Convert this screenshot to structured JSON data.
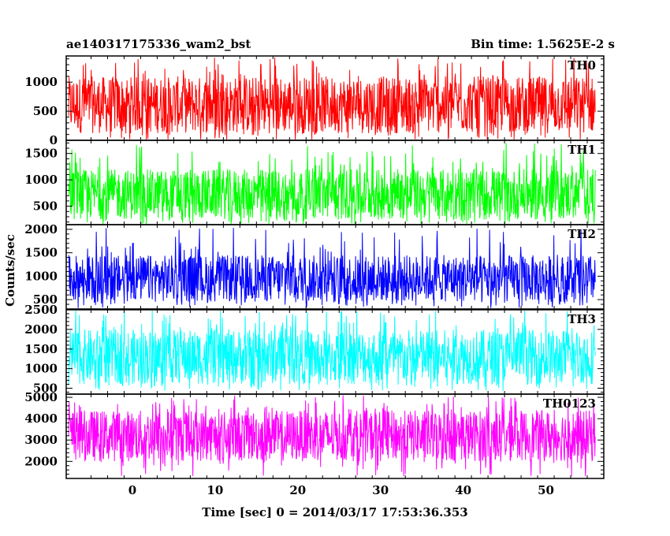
{
  "header": {
    "title": "ae140317175336_wam2_bst",
    "bin_time": "Bin time: 1.5625E-2 s"
  },
  "chart_data": {
    "type": "line",
    "xlabel": "Time [sec] 0 = 2014/03/17 17:53:36.353",
    "ylabel": "Counts/sec",
    "xlim": [
      -8,
      57
    ],
    "x_ticks": [
      0,
      10,
      20,
      30,
      40,
      50
    ],
    "x_range_data": [
      -7.7,
      56.0
    ],
    "grid": false,
    "panels": [
      {
        "name": "TH0",
        "color": "#ff0000",
        "ylim": [
          0,
          1450
        ],
        "y_ticks": [
          0,
          500,
          1000
        ],
        "typical_range": [
          120,
          1100
        ],
        "peak_range": [
          0,
          1450
        ]
      },
      {
        "name": "TH1",
        "color": "#00ff00",
        "ylim": [
          150,
          1750
        ],
        "y_ticks": [
          500,
          1000,
          1500
        ],
        "typical_range": [
          250,
          1200
        ],
        "peak_range": [
          150,
          1700
        ]
      },
      {
        "name": "TH2",
        "color": "#0000ff",
        "ylim": [
          300,
          2100
        ],
        "y_ticks": [
          500,
          1000,
          1500,
          2000
        ],
        "typical_range": [
          450,
          1450
        ],
        "peak_range": [
          320,
          2050
        ]
      },
      {
        "name": "TH3",
        "color": "#00ffff",
        "ylim": [
          350,
          2500
        ],
        "y_ticks": [
          500,
          1000,
          1500,
          2000,
          2500
        ],
        "typical_range": [
          600,
          2000
        ],
        "peak_range": [
          430,
          2500
        ]
      },
      {
        "name": "TH0123",
        "color": "#ff00ff",
        "ylim": [
          1200,
          5150
        ],
        "y_ticks": [
          2000,
          3000,
          4000,
          5000
        ],
        "typical_range": [
          2000,
          4400
        ],
        "peak_range": [
          1300,
          5100
        ]
      }
    ]
  }
}
